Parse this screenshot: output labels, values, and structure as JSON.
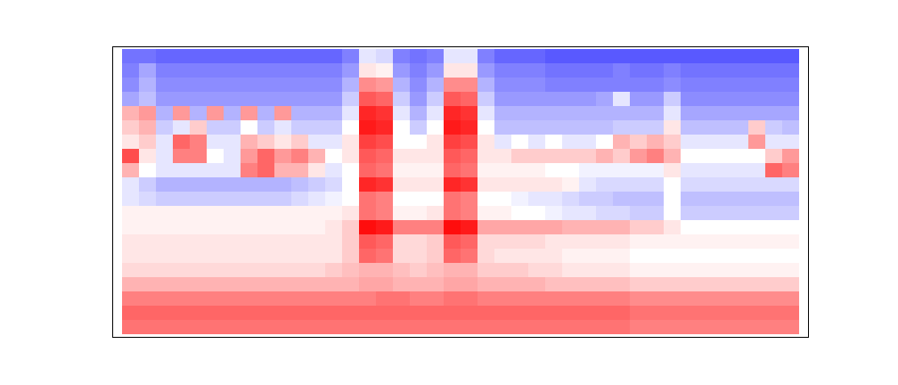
{
  "chart_data": {
    "type": "heatmap",
    "tick_labels": false,
    "zlim": [
      -1,
      1
    ],
    "z": [
      [
        -0.55,
        -0.55,
        -0.6,
        -0.6,
        -0.6,
        -0.6,
        -0.6,
        -0.6,
        -0.6,
        -0.6,
        -0.6,
        -0.6,
        -0.6,
        -0.5,
        -0.1,
        -0.15,
        -0.5,
        -0.55,
        -0.5,
        -0.1,
        -0.1,
        -0.5,
        -0.6,
        -0.6,
        -0.6,
        -0.65,
        -0.65,
        -0.65,
        -0.65,
        -0.65,
        -0.65,
        -0.65,
        -0.65,
        -0.65,
        -0.65,
        -0.65,
        -0.65,
        -0.65,
        -0.65,
        -0.65
      ],
      [
        -0.5,
        -0.35,
        -0.5,
        -0.5,
        -0.5,
        -0.5,
        -0.5,
        -0.5,
        -0.5,
        -0.5,
        -0.5,
        -0.5,
        -0.5,
        -0.4,
        0.1,
        0.05,
        -0.4,
        -0.5,
        -0.4,
        0.1,
        0.1,
        -0.4,
        -0.5,
        -0.5,
        -0.5,
        -0.55,
        -0.55,
        -0.55,
        -0.55,
        -0.5,
        -0.55,
        -0.55,
        -0.5,
        -0.55,
        -0.55,
        -0.55,
        -0.55,
        -0.55,
        -0.55,
        -0.55
      ],
      [
        -0.45,
        -0.3,
        -0.45,
        -0.45,
        -0.45,
        -0.45,
        -0.45,
        -0.45,
        -0.45,
        -0.45,
        -0.45,
        -0.45,
        -0.45,
        -0.3,
        0.45,
        0.4,
        -0.3,
        -0.45,
        -0.3,
        0.45,
        0.45,
        -0.3,
        -0.45,
        -0.45,
        -0.45,
        -0.5,
        -0.5,
        -0.5,
        -0.5,
        -0.5,
        -0.5,
        -0.5,
        -0.45,
        -0.5,
        -0.5,
        -0.5,
        -0.5,
        -0.5,
        -0.5,
        -0.5
      ],
      [
        -0.35,
        -0.25,
        -0.4,
        -0.4,
        -0.4,
        -0.4,
        -0.4,
        -0.4,
        -0.4,
        -0.4,
        -0.4,
        -0.4,
        -0.4,
        -0.2,
        0.65,
        0.6,
        -0.2,
        -0.4,
        -0.2,
        0.65,
        0.6,
        -0.2,
        -0.4,
        -0.4,
        -0.4,
        -0.4,
        -0.4,
        -0.4,
        -0.35,
        -0.1,
        -0.4,
        -0.4,
        -0.2,
        -0.45,
        -0.45,
        -0.45,
        -0.45,
        -0.45,
        -0.45,
        -0.45
      ],
      [
        0.3,
        0.4,
        -0.3,
        0.4,
        -0.3,
        0.4,
        -0.3,
        0.4,
        -0.3,
        0.4,
        -0.3,
        -0.3,
        -0.3,
        -0.1,
        0.85,
        0.8,
        -0.1,
        -0.3,
        -0.1,
        0.85,
        0.8,
        -0.1,
        -0.3,
        -0.3,
        -0.3,
        -0.3,
        -0.3,
        -0.3,
        -0.3,
        -0.3,
        -0.3,
        -0.3,
        -0.1,
        -0.35,
        -0.35,
        -0.35,
        -0.35,
        -0.35,
        -0.35,
        -0.35
      ],
      [
        0.2,
        0.3,
        -0.2,
        -0.1,
        0.2,
        -0.2,
        -0.2,
        0.0,
        -0.2,
        -0.1,
        -0.2,
        -0.2,
        -0.2,
        0.0,
        0.9,
        0.85,
        0.0,
        -0.2,
        0.0,
        0.9,
        0.85,
        0.0,
        -0.25,
        -0.25,
        -0.25,
        -0.25,
        -0.25,
        -0.25,
        -0.25,
        -0.2,
        -0.2,
        -0.2,
        0.1,
        -0.25,
        -0.25,
        -0.25,
        -0.25,
        0.2,
        -0.2,
        -0.25
      ],
      [
        0.1,
        0.2,
        -0.1,
        0.6,
        0.5,
        -0.1,
        -0.1,
        0.3,
        0.2,
        0.1,
        0.2,
        -0.1,
        -0.1,
        0.1,
        0.75,
        0.7,
        0.0,
        0.0,
        0.1,
        0.75,
        0.7,
        0.1,
        -0.1,
        0.0,
        -0.1,
        0.0,
        -0.1,
        -0.1,
        0.0,
        0.3,
        0.2,
        0.3,
        0.2,
        -0.1,
        -0.1,
        -0.1,
        -0.1,
        0.4,
        -0.1,
        -0.1
      ],
      [
        0.7,
        0.1,
        -0.1,
        0.5,
        0.5,
        0.0,
        -0.1,
        0.4,
        0.6,
        0.4,
        0.5,
        0.3,
        0.0,
        0.1,
        0.65,
        0.6,
        0.1,
        0.1,
        0.1,
        0.65,
        0.6,
        0.1,
        0.1,
        0.2,
        0.2,
        0.2,
        0.2,
        0.2,
        0.3,
        0.2,
        0.4,
        0.5,
        0.3,
        0.0,
        0.0,
        0.0,
        0.0,
        0.0,
        0.2,
        0.4
      ],
      [
        0.3,
        0.0,
        -0.1,
        -0.1,
        -0.1,
        -0.1,
        -0.1,
        0.5,
        0.6,
        0.3,
        0.3,
        0.1,
        -0.1,
        0.0,
        0.6,
        0.55,
        0.05,
        0.05,
        0.05,
        0.6,
        0.55,
        0.05,
        0.05,
        0.05,
        0.05,
        0.0,
        0.0,
        -0.05,
        -0.05,
        -0.05,
        -0.05,
        -0.05,
        0.1,
        -0.1,
        -0.1,
        -0.1,
        -0.1,
        -0.1,
        0.6,
        0.5
      ],
      [
        -0.1,
        -0.2,
        -0.3,
        -0.3,
        -0.3,
        -0.3,
        -0.3,
        -0.3,
        -0.3,
        -0.3,
        -0.25,
        -0.2,
        -0.15,
        0.0,
        0.85,
        0.8,
        0.1,
        0.1,
        0.1,
        0.85,
        0.8,
        0.1,
        0.1,
        0.1,
        0.1,
        0.1,
        0.05,
        -0.1,
        -0.15,
        -0.15,
        -0.15,
        -0.15,
        0.0,
        -0.15,
        -0.15,
        -0.15,
        -0.15,
        -0.15,
        -0.15,
        -0.15
      ],
      [
        -0.1,
        -0.15,
        -0.2,
        -0.2,
        -0.2,
        -0.2,
        -0.2,
        -0.2,
        -0.2,
        -0.2,
        -0.15,
        -0.1,
        -0.05,
        0.0,
        0.55,
        0.5,
        0.0,
        0.0,
        0.0,
        0.55,
        0.5,
        0.0,
        0.0,
        -0.05,
        -0.1,
        -0.1,
        -0.15,
        -0.2,
        -0.2,
        -0.25,
        -0.25,
        -0.25,
        0.0,
        -0.25,
        -0.25,
        -0.25,
        -0.25,
        -0.25,
        -0.25,
        -0.25
      ],
      [
        0.05,
        0.05,
        0.05,
        0.05,
        0.05,
        0.05,
        0.05,
        0.05,
        0.05,
        0.05,
        0.05,
        0.05,
        0.05,
        0.1,
        0.55,
        0.5,
        0.05,
        0.05,
        0.1,
        0.55,
        0.5,
        0.05,
        0.05,
        0.0,
        0.0,
        -0.05,
        -0.1,
        -0.1,
        -0.15,
        -0.15,
        -0.2,
        -0.2,
        0.0,
        -0.2,
        -0.2,
        -0.2,
        -0.2,
        -0.2,
        -0.2,
        -0.2
      ],
      [
        0.05,
        0.05,
        0.05,
        0.05,
        0.05,
        0.05,
        0.05,
        0.05,
        0.05,
        0.05,
        0.05,
        0.05,
        0.1,
        0.2,
        0.95,
        0.9,
        0.5,
        0.5,
        0.5,
        0.95,
        0.9,
        0.35,
        0.35,
        0.35,
        0.35,
        0.35,
        0.3,
        0.3,
        0.3,
        0.3,
        0.2,
        0.2,
        0.1,
        0.0,
        0.0,
        0.0,
        0.0,
        0.0,
        0.0,
        0.0
      ],
      [
        0.1,
        0.1,
        0.1,
        0.1,
        0.1,
        0.1,
        0.1,
        0.1,
        0.1,
        0.1,
        0.1,
        0.1,
        0.1,
        0.2,
        0.65,
        0.6,
        0.15,
        0.15,
        0.2,
        0.65,
        0.6,
        0.15,
        0.15,
        0.15,
        0.15,
        0.1,
        0.1,
        0.1,
        0.1,
        0.1,
        0.05,
        0.05,
        0.05,
        0.05,
        0.05,
        0.05,
        0.05,
        0.05,
        0.05,
        0.05
      ],
      [
        0.1,
        0.1,
        0.1,
        0.1,
        0.1,
        0.1,
        0.1,
        0.1,
        0.1,
        0.1,
        0.1,
        0.1,
        0.1,
        0.2,
        0.6,
        0.55,
        0.15,
        0.15,
        0.2,
        0.6,
        0.55,
        0.15,
        0.1,
        0.1,
        0.1,
        0.1,
        0.05,
        0.05,
        0.05,
        0.05,
        0.0,
        0.0,
        0.0,
        0.0,
        0.0,
        0.0,
        0.0,
        0.0,
        0.0,
        0.0
      ],
      [
        0.15,
        0.15,
        0.15,
        0.15,
        0.15,
        0.15,
        0.15,
        0.15,
        0.15,
        0.15,
        0.15,
        0.15,
        0.2,
        0.25,
        0.3,
        0.3,
        0.25,
        0.2,
        0.25,
        0.3,
        0.3,
        0.2,
        0.2,
        0.2,
        0.15,
        0.15,
        0.1,
        0.1,
        0.1,
        0.1,
        0.05,
        0.05,
        0.05,
        0.05,
        0.05,
        0.05,
        0.05,
        0.05,
        0.05,
        0.05
      ],
      [
        0.3,
        0.3,
        0.3,
        0.3,
        0.3,
        0.3,
        0.3,
        0.3,
        0.3,
        0.3,
        0.3,
        0.3,
        0.3,
        0.3,
        0.35,
        0.35,
        0.3,
        0.3,
        0.3,
        0.35,
        0.35,
        0.3,
        0.3,
        0.3,
        0.3,
        0.25,
        0.25,
        0.25,
        0.25,
        0.25,
        0.2,
        0.2,
        0.2,
        0.2,
        0.2,
        0.2,
        0.2,
        0.2,
        0.2,
        0.2
      ],
      [
        0.5,
        0.5,
        0.5,
        0.5,
        0.5,
        0.5,
        0.5,
        0.5,
        0.5,
        0.5,
        0.5,
        0.5,
        0.5,
        0.5,
        0.5,
        0.55,
        0.55,
        0.5,
        0.5,
        0.55,
        0.55,
        0.5,
        0.5,
        0.5,
        0.5,
        0.5,
        0.5,
        0.5,
        0.5,
        0.5,
        0.45,
        0.45,
        0.45,
        0.45,
        0.45,
        0.45,
        0.45,
        0.45,
        0.45,
        0.45
      ],
      [
        0.6,
        0.6,
        0.6,
        0.6,
        0.6,
        0.6,
        0.6,
        0.6,
        0.6,
        0.6,
        0.6,
        0.6,
        0.6,
        0.6,
        0.6,
        0.6,
        0.6,
        0.6,
        0.6,
        0.6,
        0.6,
        0.6,
        0.6,
        0.6,
        0.6,
        0.6,
        0.6,
        0.6,
        0.6,
        0.6,
        0.55,
        0.55,
        0.55,
        0.55,
        0.55,
        0.55,
        0.55,
        0.55,
        0.55,
        0.55
      ],
      [
        0.55,
        0.55,
        0.55,
        0.55,
        0.55,
        0.55,
        0.55,
        0.55,
        0.55,
        0.55,
        0.55,
        0.55,
        0.55,
        0.55,
        0.55,
        0.55,
        0.55,
        0.55,
        0.55,
        0.55,
        0.55,
        0.55,
        0.55,
        0.55,
        0.55,
        0.55,
        0.55,
        0.55,
        0.55,
        0.55,
        0.5,
        0.5,
        0.5,
        0.5,
        0.5,
        0.5,
        0.5,
        0.5,
        0.5,
        0.5
      ]
    ]
  }
}
